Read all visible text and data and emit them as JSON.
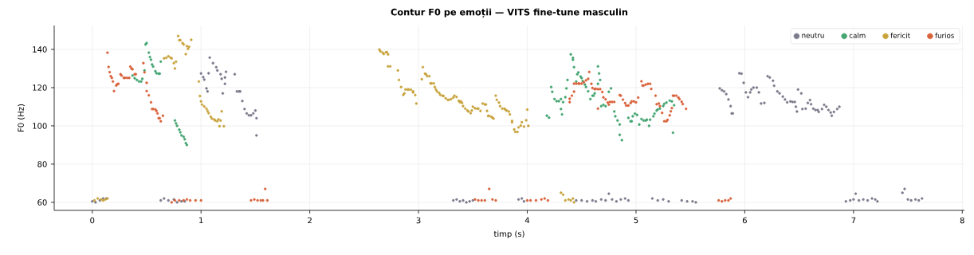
{
  "chart_data": {
    "type": "scatter",
    "title": "Contur F0 pe emoții — VITS fine-tune masculin",
    "xlabel": "timp (s)",
    "ylabel": "F0 (Hz)",
    "xlim": [
      -0.35,
      8.02
    ],
    "ylim": [
      55.8,
      152.5
    ],
    "xticks": [
      0,
      1,
      2,
      3,
      4,
      5,
      6,
      7,
      8
    ],
    "yticks": [
      60,
      80,
      100,
      120,
      140
    ],
    "grid": true,
    "legend": "top right",
    "marker": "circle",
    "series": [
      {
        "name": "neutru",
        "color": "#7a7a8c",
        "x": [
          0.0,
          0.03,
          0.07,
          0.1,
          0.13,
          0.63,
          0.66,
          0.7,
          0.75,
          0.78,
          0.82,
          0.85,
          1.0,
          1.02,
          1.03,
          1.05,
          1.06,
          1.07,
          1.08,
          1.11,
          1.14,
          1.15,
          1.18,
          1.19,
          1.2,
          1.22,
          1.22,
          1.23,
          1.31,
          1.33,
          1.35,
          1.36,
          1.38,
          1.4,
          1.42,
          1.44,
          1.46,
          1.48,
          1.5,
          1.51,
          1.51,
          3.32,
          3.35,
          3.38,
          3.41,
          3.44,
          3.47,
          3.5,
          3.92,
          3.95,
          3.97,
          4.45,
          4.5,
          4.55,
          4.6,
          4.63,
          4.68,
          4.72,
          4.75,
          4.78,
          4.82,
          4.86,
          4.9,
          4.93,
          5.15,
          5.2,
          5.25,
          5.3,
          5.42,
          5.47,
          5.52,
          5.55,
          5.77,
          5.79,
          5.81,
          5.83,
          5.85,
          5.87,
          5.88,
          5.89,
          5.95,
          5.97,
          5.99,
          6.01,
          6.03,
          6.05,
          6.06,
          6.08,
          6.11,
          6.13,
          6.15,
          6.18,
          6.21,
          6.23,
          6.26,
          6.27,
          6.3,
          6.32,
          6.35,
          6.37,
          6.39,
          6.42,
          6.44,
          6.46,
          6.47,
          6.48,
          6.49,
          6.52,
          6.53,
          6.56,
          6.58,
          6.6,
          6.61,
          6.63,
          6.65,
          6.67,
          6.68,
          6.71,
          6.73,
          6.75,
          6.77,
          6.79,
          6.8,
          6.82,
          6.85,
          6.87,
          6.93,
          6.97,
          7.0,
          7.02,
          7.05,
          7.09,
          7.13,
          7.17,
          7.2,
          7.22,
          7.45,
          7.47,
          7.5,
          7.53,
          7.57,
          7.6,
          7.63
        ],
        "values": [
          60.5,
          60,
          61,
          62,
          62,
          61,
          62,
          61,
          61.5,
          60,
          60.5,
          60.5,
          127.4,
          125.5,
          124.2,
          119.6,
          118,
          127.5,
          135.7,
          132.8,
          130.7,
          129,
          127,
          124.6,
          117,
          122,
          125.3,
          128.3,
          127,
          118,
          118,
          118,
          113,
          108.8,
          106.5,
          105.5,
          105.5,
          106.5,
          108,
          104,
          95,
          61,
          61.5,
          60.5,
          61,
          60,
          60.5,
          61,
          61.5,
          62,
          60.5,
          61,
          61,
          60.5,
          61,
          60.5,
          61.5,
          61,
          64.5,
          61.5,
          60.5,
          61.5,
          62,
          61,
          62,
          61,
          61.5,
          60.5,
          61,
          60.5,
          60.5,
          60,
          119.6,
          118.6,
          118,
          116.6,
          113.8,
          110.3,
          106.5,
          106.5,
          127.5,
          127.3,
          122.5,
          117.5,
          115,
          117.5,
          119,
          120,
          120,
          117.5,
          111.7,
          112,
          126,
          125.3,
          123.6,
          121,
          118,
          117,
          115.3,
          113.8,
          112.3,
          112.8,
          112.5,
          112.5,
          110,
          107.5,
          119,
          117,
          108.8,
          109,
          112,
          113.5,
          111.3,
          109,
          108.3,
          108.3,
          107.3,
          108.8,
          111,
          110,
          108.3,
          107,
          105.3,
          107.3,
          108.8,
          110,
          60.5,
          61,
          61.5,
          64.5,
          61,
          61.5,
          61,
          62,
          61.5,
          60.5,
          65,
          67,
          61.5,
          61,
          61.5,
          61,
          62
        ]
      },
      {
        "name": "calm",
        "color": "#44a571",
        "x": [
          0.37,
          0.39,
          0.41,
          0.43,
          0.45,
          0.46,
          0.48,
          0.49,
          0.5,
          0.52,
          0.53,
          0.54,
          0.55,
          0.56,
          0.58,
          0.59,
          0.61,
          0.62,
          0.63,
          0.76,
          0.77,
          0.78,
          0.8,
          0.81,
          0.82,
          0.84,
          0.85,
          0.86,
          0.87,
          4.18,
          4.2,
          4.22,
          4.23,
          4.25,
          4.27,
          4.29,
          4.31,
          4.31,
          4.32,
          4.33,
          4.35,
          4.36,
          4.37,
          4.4,
          4.42,
          4.42,
          4.43,
          4.45,
          4.46,
          4.47,
          4.49,
          4.5,
          4.51,
          4.53,
          4.54,
          4.56,
          4.58,
          4.6,
          4.61,
          4.62,
          4.65,
          4.65,
          4.66,
          4.67,
          4.68,
          4.7,
          4.72,
          4.75,
          4.77,
          4.8,
          4.81,
          4.83,
          4.85,
          4.85,
          4.87,
          4.93,
          4.95,
          4.96,
          4.97,
          4.99,
          5.01,
          5.03,
          5.05,
          5.07,
          5.09,
          5.1,
          5.12,
          5.13,
          5.16,
          5.17,
          5.19,
          5.2,
          5.22,
          5.25,
          5.26,
          5.28,
          5.31,
          5.33,
          5.35,
          5.34
        ],
        "values": [
          126.3,
          124.9,
          124,
          123.2,
          123.2,
          124.6,
          129,
          142.6,
          143.3,
          138.3,
          136,
          134.6,
          132.1,
          131,
          128.6,
          127.5,
          127.3,
          127.3,
          133.6,
          102.8,
          101.3,
          100,
          98,
          96.6,
          95,
          94.3,
          93,
          91,
          90,
          105.3,
          104.3,
          120.3,
          117.8,
          114,
          112.9,
          112.9,
          114,
          108.8,
          106,
          112.4,
          115,
          119.6,
          124,
          137.4,
          134.6,
          135.6,
          130.7,
          123.2,
          127,
          128,
          125.8,
          125,
          123.4,
          121.6,
          120.3,
          118.1,
          114,
          115.8,
          115.8,
          117,
          122,
          131.1,
          127.4,
          124,
          110.3,
          111,
          110.3,
          117.8,
          119.6,
          107.5,
          105,
          102.8,
          100.7,
          95.3,
          92.5,
          104.2,
          102.4,
          102.4,
          105,
          106.4,
          105.7,
          100.7,
          103.6,
          102.8,
          102.8,
          103.2,
          100,
          103.2,
          105,
          106.4,
          108,
          108.6,
          109,
          110.4,
          111.5,
          112.2,
          113.2,
          112.8,
          110.8,
          96.4
        ]
      },
      {
        "name": "fericit",
        "color": "#c9a43e",
        "x": [
          0.02,
          0.05,
          0.08,
          0.1,
          0.12,
          0.14,
          0.66,
          0.68,
          0.7,
          0.72,
          0.73,
          0.75,
          0.76,
          0.77,
          0.79,
          0.8,
          0.81,
          0.83,
          0.84,
          0.86,
          0.87,
          0.88,
          0.89,
          0.91,
          0.98,
          0.99,
          1.0,
          1.01,
          1.03,
          1.05,
          1.06,
          1.07,
          1.09,
          1.1,
          1.12,
          1.13,
          1.15,
          1.16,
          1.17,
          1.18,
          1.19,
          1.21,
          2.64,
          2.65,
          2.67,
          2.68,
          2.7,
          2.71,
          2.72,
          2.72,
          2.74,
          2.81,
          2.82,
          2.84,
          2.86,
          2.87,
          2.88,
          2.9,
          2.91,
          2.93,
          2.95,
          2.95,
          2.97,
          2.98,
          3.03,
          3.04,
          3.06,
          3.07,
          3.08,
          3.1,
          3.11,
          3.12,
          3.14,
          3.15,
          3.16,
          3.17,
          3.19,
          3.2,
          3.22,
          3.23,
          3.25,
          3.27,
          3.28,
          3.3,
          3.32,
          3.33,
          3.35,
          3.37,
          3.38,
          3.39,
          3.4,
          3.41,
          3.43,
          3.45,
          3.46,
          3.48,
          3.49,
          3.5,
          3.52,
          3.54,
          3.55,
          3.57,
          3.59,
          3.61,
          3.62,
          3.63,
          3.64,
          3.65,
          3.67,
          3.68,
          3.69,
          3.71,
          3.72,
          3.74,
          3.75,
          3.77,
          3.79,
          3.8,
          3.81,
          3.83,
          3.84,
          3.86,
          3.86,
          3.88,
          3.89,
          3.91,
          3.92,
          3.94,
          3.95,
          3.97,
          3.99,
          4.0,
          4.01,
          4.31,
          4.33,
          4.35,
          4.38,
          4.4,
          4.42,
          4.43
        ],
        "values": [
          61,
          62,
          61.5,
          61,
          61.5,
          62,
          135.3,
          135.6,
          136.4,
          135.7,
          135.3,
          132.8,
          130,
          133.6,
          147,
          144.8,
          144.8,
          143.3,
          142.6,
          137.5,
          141.7,
          140.3,
          141.3,
          145,
          123.2,
          115.6,
          112.8,
          111.1,
          110.1,
          109,
          107.8,
          106.6,
          104.8,
          103.8,
          103.4,
          102.8,
          102.4,
          103.4,
          99.8,
          102.8,
          107.6,
          99.8,
          139.9,
          139,
          138.3,
          137.6,
          138.5,
          138.5,
          137.4,
          131.1,
          131.1,
          129,
          124,
          120.3,
          116.2,
          117,
          119,
          119,
          119,
          118.9,
          118,
          117.5,
          116.1,
          111.7,
          124.4,
          130.7,
          127.3,
          126.9,
          126,
          126,
          122.2,
          122.2,
          122.2,
          120.3,
          119,
          118,
          117.2,
          116.2,
          115.8,
          115.6,
          114.4,
          113.6,
          113.6,
          114,
          114.8,
          115.8,
          115.1,
          113.1,
          112.4,
          112.8,
          112,
          110.3,
          109,
          108,
          107.5,
          106.6,
          108,
          110,
          109.2,
          109,
          109,
          107.8,
          111.7,
          111.2,
          111.2,
          107.8,
          105.2,
          105.2,
          104.7,
          104.3,
          103.8,
          115.8,
          113.6,
          112.2,
          110.3,
          109,
          109,
          108.4,
          108,
          107.5,
          106,
          102.6,
          101.9,
          98.1,
          96.8,
          96.8,
          99.2,
          100.1,
          101.9,
          99.6,
          102.9,
          108.5,
          100,
          65,
          64,
          61,
          61.5,
          61,
          62,
          60
        ]
      },
      {
        "name": "furios",
        "color": "#d9623b",
        "x": [
          0.14,
          0.15,
          0.16,
          0.17,
          0.18,
          0.19,
          0.2,
          0.22,
          0.23,
          0.24,
          0.26,
          0.27,
          0.29,
          0.3,
          0.32,
          0.34,
          0.35,
          0.36,
          0.37,
          0.39,
          0.4,
          0.47,
          0.48,
          0.5,
          0.5,
          0.52,
          0.54,
          0.55,
          0.56,
          0.58,
          0.59,
          0.6,
          0.61,
          0.62,
          0.63,
          0.65,
          0.73,
          0.76,
          0.8,
          0.84,
          0.87,
          0.9,
          0.95,
          1.0,
          1.46,
          1.49,
          1.52,
          1.55,
          1.57,
          1.59,
          1.61,
          3.52,
          3.55,
          3.58,
          3.61,
          3.65,
          3.68,
          3.71,
          4.0,
          4.03,
          4.08,
          4.13,
          4.16,
          4.19,
          4.39,
          4.39,
          4.41,
          4.43,
          4.43,
          4.45,
          4.47,
          4.48,
          4.5,
          4.52,
          4.54,
          4.56,
          4.57,
          4.59,
          4.6,
          4.62,
          4.63,
          4.65,
          4.65,
          4.67,
          4.69,
          4.7,
          4.72,
          4.74,
          4.75,
          4.76,
          4.78,
          4.8,
          4.85,
          4.86,
          4.88,
          4.9,
          4.91,
          4.93,
          4.95,
          4.96,
          4.98,
          5.0,
          5.02,
          5.05,
          5.06,
          5.07,
          5.09,
          5.11,
          5.13,
          5.14,
          5.18,
          5.19,
          5.21,
          5.22,
          5.24,
          5.26,
          5.28,
          5.29,
          5.31,
          5.32,
          5.33,
          5.34,
          5.35,
          5.37,
          5.39,
          5.4,
          5.42,
          5.43,
          5.46,
          5.76,
          5.79,
          5.82,
          5.85,
          5.87
        ],
        "values": [
          138.3,
          130.8,
          128.1,
          126,
          125.1,
          123.2,
          118.2,
          121.1,
          121.8,
          122,
          127,
          126.3,
          125.1,
          125.1,
          125.1,
          125.1,
          131,
          130,
          129.6,
          127,
          127,
          132.8,
          128,
          122.5,
          118.2,
          116,
          112.3,
          108.8,
          108.8,
          108.6,
          107.8,
          106.5,
          104,
          104,
          102.4,
          105.3,
          60,
          61,
          61,
          61,
          61.5,
          61,
          61,
          61,
          61,
          61.5,
          61,
          61,
          61,
          67,
          61,
          61.5,
          61,
          61,
          61,
          67,
          61.5,
          61,
          61,
          61,
          61,
          61.5,
          62,
          61,
          112.4,
          114.2,
          115.8,
          117.9,
          122.1,
          122.1,
          122.1,
          122.1,
          122.1,
          122.8,
          123.8,
          124.6,
          128.2,
          122,
          119.8,
          119.2,
          119.4,
          119.2,
          109,
          119.2,
          117.7,
          114.9,
          113.9,
          112.2,
          111.1,
          112.5,
          112.5,
          112.5,
          116.1,
          115.8,
          113.7,
          111.9,
          110.6,
          110.6,
          111.9,
          112.8,
          112.8,
          112.3,
          114.8,
          123.3,
          121.1,
          121.1,
          121.6,
          122,
          122,
          119.3,
          115.8,
          111.3,
          111.7,
          110.3,
          106.8,
          102.4,
          102.4,
          103.1,
          105.5,
          107.6,
          109.3,
          115.8,
          115.8,
          115.8,
          114.8,
          114,
          112.6,
          111.4,
          108.9,
          61,
          60.5,
          61,
          61,
          62
        ]
      }
    ]
  }
}
